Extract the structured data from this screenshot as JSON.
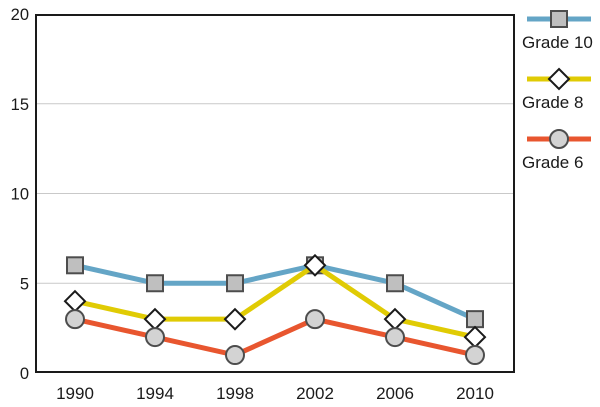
{
  "chart_data": {
    "type": "line",
    "title": "",
    "xlabel": "",
    "ylabel": "",
    "categories": [
      "1990",
      "1994",
      "1998",
      "2002",
      "2006",
      "2010"
    ],
    "series": [
      {
        "name": "Grade 10",
        "values": [
          6,
          5,
          5,
          6,
          5,
          3
        ],
        "color": "#64a5c6",
        "marker": "square",
        "marker_fill": "#bfbfbf",
        "marker_stroke": "#4d4d4d"
      },
      {
        "name": "Grade 8",
        "values": [
          4,
          3,
          3,
          6,
          3,
          2
        ],
        "color": "#e0cb04",
        "marker": "diamond",
        "marker_fill": "#ffffff",
        "marker_stroke": "#1a1a1a"
      },
      {
        "name": "Grade 6",
        "values": [
          3,
          2,
          1,
          3,
          2,
          1
        ],
        "color": "#e8562f",
        "marker": "circle",
        "marker_fill": "#d3d3d3",
        "marker_stroke": "#4d4d4d"
      }
    ],
    "ylim": [
      0,
      20
    ],
    "yticks": [
      0,
      5,
      10,
      15,
      20
    ],
    "grid": true,
    "gridline_color": "#c9c9c9",
    "axis_color": "#1a1a1a",
    "text_color": "#1a1a1a",
    "legend_position": "right"
  }
}
